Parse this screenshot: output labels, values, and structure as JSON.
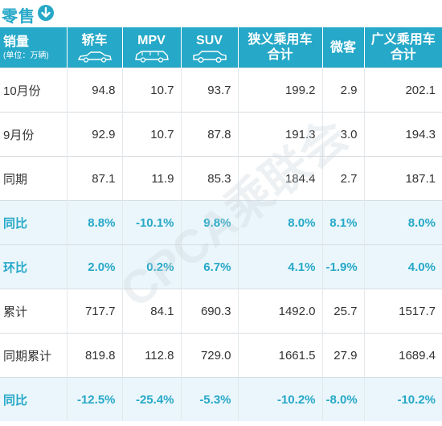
{
  "title": "零售",
  "header": {
    "rowlabel": "销量",
    "unit": "(单位：万辆)",
    "columns": [
      "轿车",
      "MPV",
      "SUV",
      "狭义乘用车合计",
      "微客",
      "广义乘用车合计"
    ]
  },
  "rows": [
    {
      "label": "10月份",
      "highlight": false,
      "values": [
        "94.8",
        "10.7",
        "93.7",
        "199.2",
        "2.9",
        "202.1"
      ]
    },
    {
      "label": "9月份",
      "highlight": false,
      "values": [
        "92.9",
        "10.7",
        "87.8",
        "191.3",
        "3.0",
        "194.3"
      ]
    },
    {
      "label": "同期",
      "highlight": false,
      "values": [
        "87.1",
        "11.9",
        "85.3",
        "184.4",
        "2.7",
        "187.1"
      ]
    },
    {
      "label": "同比",
      "highlight": true,
      "values": [
        "8.8%",
        "-10.1%",
        "9.8%",
        "8.0%",
        "8.1%",
        "8.0%"
      ]
    },
    {
      "label": "环比",
      "highlight": true,
      "values": [
        "2.0%",
        "0.2%",
        "6.7%",
        "4.1%",
        "-1.9%",
        "4.0%"
      ]
    },
    {
      "label": "累计",
      "highlight": false,
      "values": [
        "717.7",
        "84.1",
        "690.3",
        "1492.0",
        "25.7",
        "1517.7"
      ]
    },
    {
      "label": "同期累计",
      "highlight": false,
      "values": [
        "819.8",
        "112.8",
        "729.0",
        "1661.5",
        "27.9",
        "1689.4"
      ]
    },
    {
      "label": "同比",
      "highlight": true,
      "values": [
        "-12.5%",
        "-25.4%",
        "-5.3%",
        "-10.2%",
        "-8.0%",
        "-10.2%"
      ]
    }
  ],
  "watermark": "CPCA乘联会",
  "colors": {
    "accent": "#26a8c8",
    "highlight_bg": "#eaf6fb"
  },
  "icons": {
    "title": "down-arrow-circle-icon",
    "car_cols": [
      "sedan-icon",
      "mpv-icon",
      "suv-icon"
    ]
  }
}
